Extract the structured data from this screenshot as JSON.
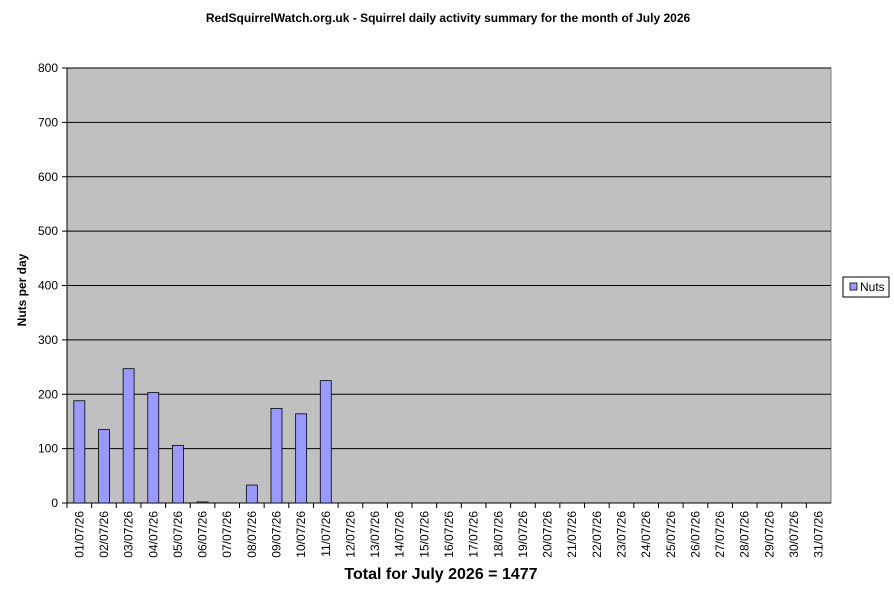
{
  "chart_data": {
    "type": "bar",
    "title": "RedSquirrelWatch.org.uk - Squirrel daily activity summary for the month of July 2026",
    "x_label": "Total for July 2026 = 1477",
    "y_label": "Nuts per day",
    "categories": [
      "01/07/26",
      "02/07/26",
      "03/07/26",
      "04/07/26",
      "05/07/26",
      "06/07/26",
      "07/07/26",
      "08/07/26",
      "09/07/26",
      "10/07/26",
      "11/07/26",
      "12/07/26",
      "13/07/26",
      "14/07/26",
      "15/07/26",
      "16/07/26",
      "17/07/26",
      "18/07/26",
      "19/07/26",
      "20/07/26",
      "21/07/26",
      "22/07/26",
      "23/07/26",
      "24/07/26",
      "25/07/26",
      "26/07/26",
      "27/07/26",
      "28/07/26",
      "29/07/26",
      "30/07/26",
      "31/07/26"
    ],
    "series": [
      {
        "name": "Nuts",
        "color": "#9999ff",
        "values": [
          188,
          135,
          247,
          203,
          106,
          2,
          0,
          33,
          174,
          164,
          225,
          null,
          null,
          null,
          null,
          null,
          null,
          null,
          null,
          null,
          null,
          null,
          null,
          null,
          null,
          null,
          null,
          null,
          null,
          null,
          null
        ]
      }
    ],
    "ylim": [
      0,
      800
    ],
    "yticks": [
      0,
      100,
      200,
      300,
      400,
      500,
      600,
      700,
      800
    ],
    "grid": true,
    "legend": "right"
  }
}
